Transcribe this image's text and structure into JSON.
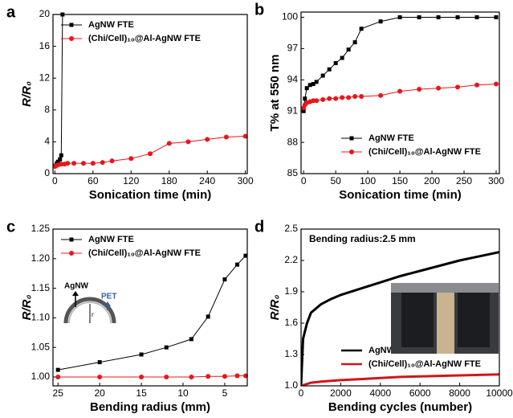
{
  "chart_data": [
    {
      "type": "line",
      "label": "a",
      "xlabel": "Sonication time (min)",
      "ylabel": "R/R₀",
      "xlim": [
        -3,
        303
      ],
      "ylim": [
        0,
        20
      ],
      "xticks": [
        0,
        60,
        120,
        180,
        240,
        300
      ],
      "yticks": [
        0,
        4,
        8,
        12,
        16,
        20
      ],
      "legend": "upper left",
      "series": [
        {
          "name": "AgNW FTE",
          "color": "#000000",
          "marker": "square",
          "x": [
            0,
            3,
            5,
            8,
            10,
            12
          ],
          "values": [
            1.0,
            1.3,
            1.5,
            1.8,
            2.3,
            20
          ]
        },
        {
          "name": "(Chi/Cell)₁₀@Al-AgNW FTE",
          "color": "#e8161b",
          "marker": "circle",
          "x": [
            0,
            2,
            5,
            10,
            15,
            20,
            30,
            45,
            60,
            75,
            90,
            120,
            150,
            180,
            210,
            240,
            270,
            300
          ],
          "values": [
            0.9,
            1.0,
            1.1,
            1.2,
            1.2,
            1.3,
            1.3,
            1.3,
            1.3,
            1.4,
            1.6,
            1.9,
            2.5,
            3.8,
            4.0,
            4.3,
            4.6,
            4.7
          ]
        }
      ]
    },
    {
      "type": "line",
      "label": "b",
      "xlabel": "Sonication time (min)",
      "ylabel": "T% at 550 nm",
      "xlim": [
        -4,
        305
      ],
      "ylim": [
        85,
        100.5
      ],
      "xticks": [
        0,
        50,
        100,
        150,
        200,
        250,
        300
      ],
      "yticks": [
        85,
        88,
        91,
        94,
        97,
        100
      ],
      "legend": "lower left",
      "series": [
        {
          "name": "AgNW FTE",
          "color": "#000000",
          "marker": "square",
          "x": [
            0,
            2,
            5,
            10,
            15,
            20,
            30,
            40,
            50,
            60,
            70,
            80,
            90,
            120,
            150,
            180,
            210,
            240,
            270,
            300
          ],
          "values": [
            91,
            92.2,
            93.2,
            93.5,
            93.6,
            93.8,
            94.4,
            95,
            95.6,
            96.1,
            96.9,
            97.6,
            98.9,
            99.6,
            100,
            100,
            100,
            100,
            100,
            100
          ]
        },
        {
          "name": "(Chi/Cell)₁₀@Al-AgNW FTE",
          "color": "#e8161b",
          "marker": "circle",
          "x": [
            0,
            2,
            5,
            10,
            15,
            20,
            30,
            40,
            50,
            60,
            70,
            80,
            90,
            120,
            150,
            180,
            210,
            240,
            270,
            300
          ],
          "values": [
            91.3,
            91.6,
            91.8,
            91.9,
            92,
            92,
            92.1,
            92.2,
            92.2,
            92.3,
            92.3,
            92.4,
            92.4,
            92.5,
            92.9,
            93.1,
            93.2,
            93.3,
            93.5,
            93.6
          ]
        }
      ]
    },
    {
      "type": "line",
      "label": "c",
      "xlabel": "Bending radius (mm)",
      "ylabel": "R/R₀",
      "xlim": [
        25.6,
        2.3
      ],
      "ylim": [
        0.985,
        1.25
      ],
      "xticks": [
        25,
        20,
        15,
        10,
        5
      ],
      "yticks": [
        {
          "value": 1,
          "label": "1.00"
        },
        1.05,
        {
          "value": 1.1,
          "label": "1.10"
        },
        1.15,
        {
          "value": 1.2,
          "label": "1.20"
        },
        1.25
      ],
      "legend": "upper left",
      "annotations": [
        "AgNW",
        "PET",
        "r"
      ],
      "series": [
        {
          "name": "AgNW FTE",
          "color": "#000000",
          "marker": "square",
          "x": [
            25,
            20,
            15,
            12,
            9,
            7,
            5,
            3.5,
            2.5
          ],
          "values": [
            1.012,
            1.025,
            1.038,
            1.05,
            1.064,
            1.102,
            1.165,
            1.19,
            1.205
          ]
        },
        {
          "name": "(Chi/Cell)₁₀@Al-AgNW FTE",
          "color": "#e8161b",
          "marker": "circle",
          "x": [
            25,
            20,
            15,
            12,
            9,
            7,
            5,
            3.5,
            2.5
          ],
          "values": [
            1.0,
            1.0,
            1.0,
            1.0,
            1.0,
            1.001,
            1.001,
            1.002,
            1.002
          ]
        }
      ]
    },
    {
      "type": "line",
      "label": "d",
      "xlabel": "Bending cycles (number)",
      "ylabel": "R/R₀",
      "xlim": [
        0,
        10000
      ],
      "ylim": [
        1.0,
        2.5
      ],
      "xticks": [
        0,
        2000,
        4000,
        6000,
        8000,
        10000
      ],
      "yticks": [
        {
          "value": 1,
          "label": "1.0"
        },
        1.3,
        1.6,
        1.9,
        2.2,
        2.5
      ],
      "legend": "lower left",
      "annotations": [
        "Bending radius:2.5 mm"
      ],
      "series": [
        {
          "name": "AgNW FTE",
          "color": "#000000",
          "x": [
            0,
            100,
            300,
            500,
            1000,
            1500,
            2000,
            3000,
            4000,
            5000,
            6000,
            7000,
            8000,
            9000,
            10000
          ],
          "values": [
            1.0,
            1.45,
            1.6,
            1.7,
            1.78,
            1.83,
            1.87,
            1.93,
            1.99,
            2.05,
            2.1,
            2.15,
            2.2,
            2.24,
            2.28
          ]
        },
        {
          "name": "(Chi/Cell)₁₀@Al-AgNW FTE",
          "color": "#d0161b",
          "x": [
            0,
            500,
            1000,
            2000,
            3000,
            4000,
            5000,
            6000,
            7000,
            8000,
            9000,
            10000
          ],
          "values": [
            1.0,
            1.03,
            1.04,
            1.055,
            1.065,
            1.075,
            1.085,
            1.09,
            1.095,
            1.1,
            1.105,
            1.11
          ]
        }
      ]
    }
  ]
}
